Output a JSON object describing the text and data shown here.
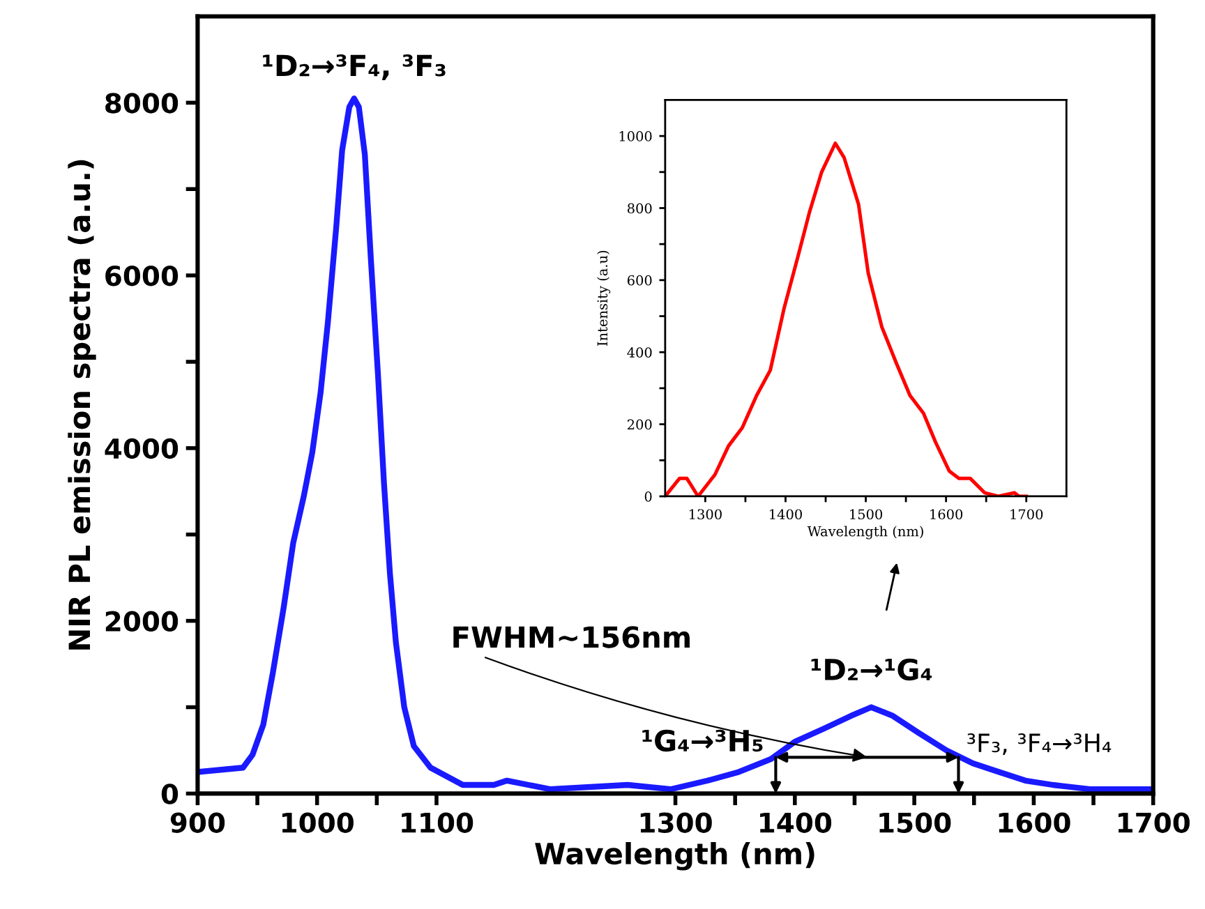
{
  "chart_data": [
    {
      "type": "line",
      "xlabel": "Wavelength (nm)",
      "ylabel": "NIR PL emission spectra (a.u.)",
      "series": [
        {
          "color": "#1a1aff",
          "x": [
            900,
            938,
            946,
            955,
            963,
            972,
            980,
            989,
            996,
            1003,
            1009,
            1016,
            1021,
            1027,
            1031,
            1035,
            1040,
            1045,
            1051,
            1056,
            1061,
            1066,
            1073,
            1081,
            1095,
            1122,
            1148,
            1159,
            1177,
            1195,
            1260,
            1296,
            1327,
            1353,
            1380,
            1400,
            1424,
            1447,
            1464,
            1482,
            1504,
            1527,
            1549,
            1571,
            1593,
            1616,
            1647,
            1700
          ],
          "values": [
            250,
            300,
            450,
            800,
            1400,
            2150,
            2900,
            3450,
            3950,
            4650,
            5450,
            6550,
            7450,
            7950,
            8050,
            7950,
            7400,
            6200,
            4850,
            3600,
            2550,
            1750,
            1000,
            550,
            300,
            100,
            100,
            150,
            100,
            50,
            100,
            50,
            150,
            250,
            400,
            600,
            750,
            900,
            1000,
            900,
            700,
            500,
            350,
            250,
            150,
            100,
            50,
            50
          ]
        }
      ],
      "xlim": [
        900,
        1700
      ],
      "ylim": [
        0,
        9000
      ],
      "xticks": [
        900,
        1000,
        1100,
        1300,
        1400,
        1500,
        1600,
        1700,
        {
          "value": 950,
          "label": null
        },
        {
          "value": 1050,
          "label": null
        },
        {
          "value": 1350,
          "label": null
        },
        {
          "value": 1450,
          "label": null
        },
        {
          "value": 1550,
          "label": null
        },
        {
          "value": 1650,
          "label": null
        }
      ],
      "yticks": [
        0,
        2000,
        4000,
        6000,
        8000,
        {
          "value": 1000,
          "label": null
        },
        {
          "value": 3000,
          "label": null
        },
        {
          "value": 5000,
          "label": null
        },
        {
          "value": 7000,
          "label": null
        }
      ],
      "annotations": [
        {
          "text": "¹D₂→³F₄, ³F₃",
          "x": 1031,
          "y": 8060
        },
        {
          "text": "¹D₂→¹G₄",
          "x": 1464,
          "y": 1020
        },
        {
          "text": "¹G₄→³H₅",
          "x": 1384,
          "y": 420
        },
        {
          "text": "³F₃, ³F₄→³H₄",
          "x": 1537,
          "y": 420
        },
        "FWHM~156nm"
      ],
      "grid": false,
      "line_style": "solid",
      "marker": "none"
    },
    {
      "type": "line",
      "xlabel": "Wavelength (nm)",
      "ylabel": "Intensity (a.u)",
      "series": [
        {
          "color": "#ff0000",
          "x": [
            1250,
            1268,
            1277,
            1291,
            1312,
            1329,
            1346,
            1364,
            1381,
            1398,
            1416,
            1430,
            1445,
            1462,
            1473,
            1491,
            1503,
            1520,
            1538,
            1555,
            1572,
            1587,
            1604,
            1616,
            1630,
            1648,
            1665,
            1685,
            1691,
            1700
          ],
          "values": [
            0,
            50,
            50,
            0,
            60,
            140,
            190,
            280,
            350,
            520,
            670,
            790,
            900,
            980,
            940,
            810,
            620,
            470,
            370,
            280,
            230,
            150,
            70,
            50,
            50,
            10,
            0,
            10,
            0,
            0
          ]
        }
      ],
      "xlim": [
        1250,
        1750
      ],
      "ylim": [
        0,
        1100
      ],
      "xticks": [
        1300,
        1400,
        1500,
        1600,
        1700,
        {
          "value": 1350,
          "label": null
        },
        {
          "value": 1450,
          "label": null
        },
        {
          "value": 1550,
          "label": null
        },
        {
          "value": 1650,
          "label": null
        }
      ],
      "yticks": [
        0,
        200,
        400,
        600,
        800,
        1000,
        {
          "value": 100,
          "label": null
        },
        {
          "value": 300,
          "label": null
        },
        {
          "value": 500,
          "label": null
        },
        {
          "value": 700,
          "label": null
        },
        {
          "value": 900,
          "label": null
        }
      ],
      "grid": false,
      "line_style": "solid",
      "marker": "none"
    }
  ]
}
